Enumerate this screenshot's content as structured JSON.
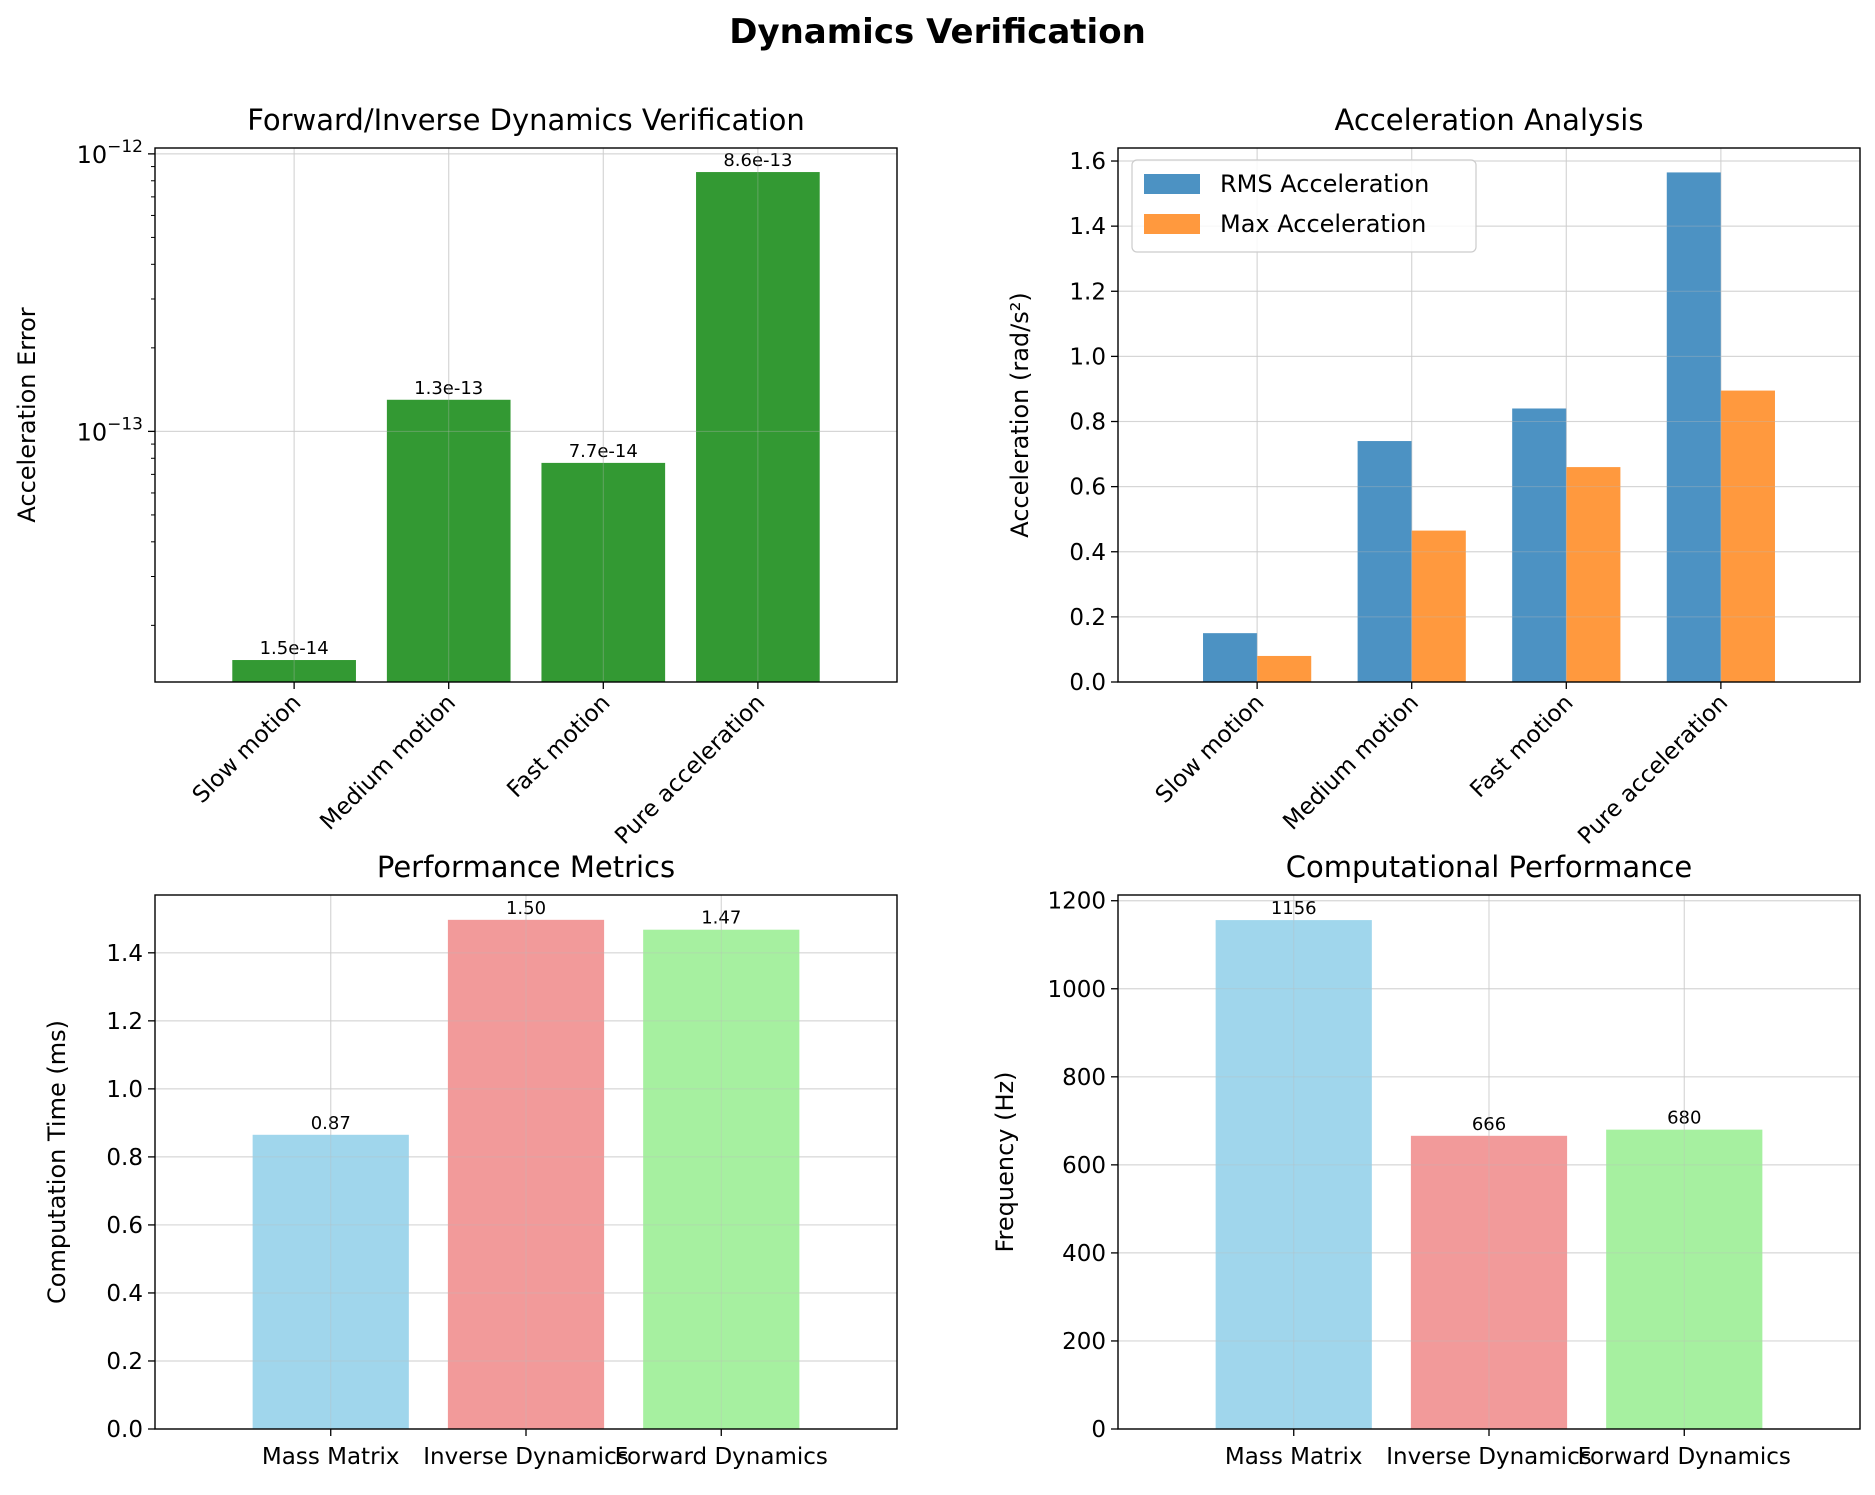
{
  "figure": {
    "title": "Dynamics Verification"
  },
  "chart_data": [
    {
      "type": "bar",
      "title": "Forward/Inverse Dynamics Verification",
      "xlabel": "",
      "ylabel": "Acceleration Error",
      "yscale": "log",
      "categories": [
        "Slow motion",
        "Medium motion",
        "Fast motion",
        "Pure acceleration"
      ],
      "values": [
        1.5e-14,
        1.3e-13,
        7.7e-14,
        8.6e-13
      ],
      "data_labels": [
        "1.5e-14",
        "1.3e-13",
        "7.7e-14",
        "8.6e-13"
      ],
      "color": "#339933",
      "ylim": [
        1.25e-14,
        1.05e-12
      ],
      "yticks": [
        {
          "value": 1e-13,
          "label": "10",
          "exp": "−13"
        },
        {
          "value": 1e-12,
          "label": "10",
          "exp": "−12"
        }
      ],
      "grid": true,
      "xtick_rotation": 45
    },
    {
      "type": "bar",
      "title": "Acceleration Analysis",
      "xlabel": "",
      "ylabel": "Acceleration (rad/s²)",
      "categories": [
        "Slow motion",
        "Medium motion",
        "Fast motion",
        "Pure acceleration"
      ],
      "series": [
        {
          "name": "RMS Acceleration",
          "values": [
            0.15,
            0.74,
            0.84,
            1.565
          ],
          "color": "#4c92c3"
        },
        {
          "name": "Max Acceleration",
          "values": [
            0.08,
            0.465,
            0.66,
            0.895
          ],
          "color": "#ff993e"
        }
      ],
      "ylim": [
        0,
        1.64
      ],
      "yticks": [
        0.0,
        0.2,
        0.4,
        0.6,
        0.8,
        1.0,
        1.2,
        1.4,
        1.6
      ],
      "ytick_labels": [
        "0.0",
        "0.2",
        "0.4",
        "0.6",
        "0.8",
        "1.0",
        "1.2",
        "1.4",
        "1.6"
      ],
      "legend": "top-left",
      "grid": true,
      "xtick_rotation": 45
    },
    {
      "type": "bar",
      "title": "Performance Metrics",
      "xlabel": "",
      "ylabel": "Computation Time (ms)",
      "categories": [
        "Mass Matrix",
        "Inverse Dynamics",
        "Forward Dynamics"
      ],
      "values": [
        0.865,
        1.497,
        1.468
      ],
      "data_labels": [
        "0.87",
        "1.50",
        "1.47"
      ],
      "colors": [
        "#a0d6ec",
        "#f29a9a",
        "#a6f0a0"
      ],
      "ylim": [
        0,
        1.57
      ],
      "yticks": [
        0.0,
        0.2,
        0.4,
        0.6,
        0.8,
        1.0,
        1.2,
        1.4
      ],
      "ytick_labels": [
        "0.0",
        "0.2",
        "0.4",
        "0.6",
        "0.8",
        "1.0",
        "1.2",
        "1.4"
      ],
      "grid": true
    },
    {
      "type": "bar",
      "title": "Computational Performance",
      "xlabel": "",
      "ylabel": "Frequency (Hz)",
      "categories": [
        "Mass Matrix",
        "Inverse Dynamics",
        "Forward Dynamics"
      ],
      "values": [
        1156,
        666,
        680
      ],
      "data_labels": [
        "1156",
        "666",
        "680"
      ],
      "colors": [
        "#a0d6ec",
        "#f29a9a",
        "#a6f0a0"
      ],
      "ylim": [
        0,
        1213
      ],
      "yticks": [
        0,
        200,
        400,
        600,
        800,
        1000,
        1200
      ],
      "ytick_labels": [
        "0",
        "200",
        "400",
        "600",
        "800",
        "1000",
        "1200"
      ],
      "grid": true
    }
  ]
}
